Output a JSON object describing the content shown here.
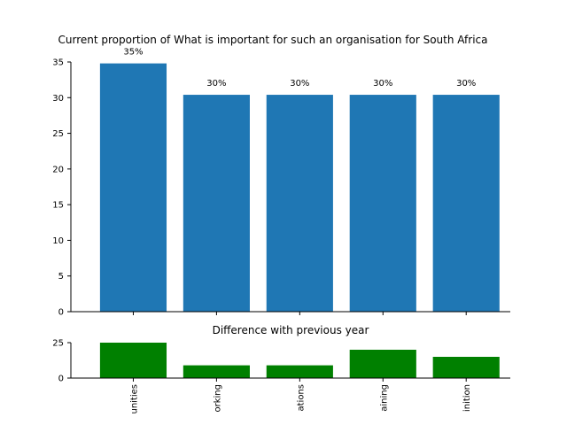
{
  "chart_data": [
    {
      "type": "bar",
      "title": "Current proportion of What is important for such an organisation for South Africa",
      "xlabel": "",
      "ylabel": "",
      "categories": [
        "unities",
        "orking",
        "ations",
        "aining",
        "inition"
      ],
      "values": [
        34.8,
        30.4,
        30.4,
        30.4,
        30.4
      ],
      "data_labels": [
        "35%",
        "30%",
        "30%",
        "30%",
        "30%"
      ],
      "ylim": [
        0,
        35
      ],
      "yticks": [
        0,
        5,
        10,
        15,
        20,
        25,
        30,
        35
      ],
      "colors": {
        "bars": "#1f77b4"
      },
      "grid": false
    },
    {
      "type": "bar",
      "title": "Difference with previous year",
      "xlabel": "",
      "ylabel": "",
      "categories": [
        "unities",
        "orking",
        "ations",
        "aining",
        "inition"
      ],
      "values": [
        25,
        9,
        9,
        20,
        15
      ],
      "ylim": [
        0,
        25
      ],
      "yticks": [
        0,
        25
      ],
      "colors": {
        "bars": "#008000"
      },
      "grid": false
    }
  ]
}
